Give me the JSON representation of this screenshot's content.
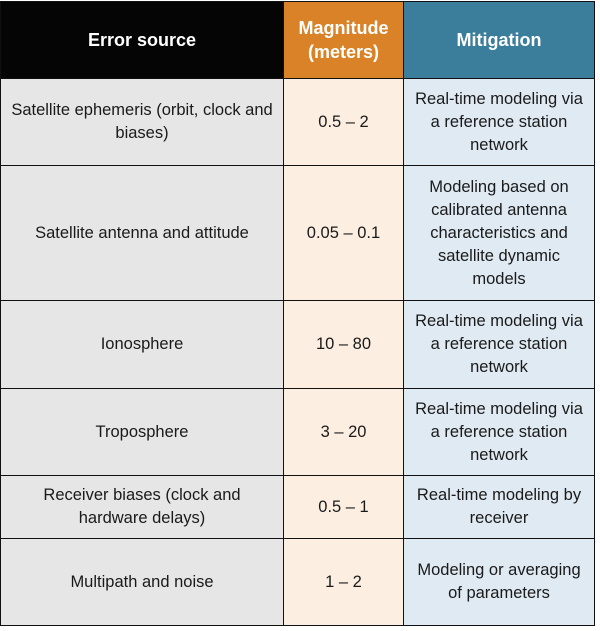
{
  "table": {
    "header": [
      "Error source",
      "Magnitude (meters)",
      "Mitigation"
    ],
    "rows": [
      [
        "Satellite ephemeris (orbit, clock and biases)",
        "0.5 – 2",
        "Real-time modeling via a reference station network"
      ],
      [
        "Satellite antenna and attitude",
        "0.05 – 0.1",
        "Modeling based on calibrated antenna characteristics and satellite dynamic models"
      ],
      [
        "Ionosphere",
        "10 – 80",
        "Real-time modeling via a reference station network"
      ],
      [
        "Troposphere",
        "3 – 20",
        "Real-time modeling via a reference station network"
      ],
      [
        "Receiver biases (clock and hardware delays)",
        "0.5 – 1",
        "Real-time modeling by receiver"
      ],
      [
        "Multipath and noise",
        "1 – 2",
        "Modeling or averaging of parameters"
      ]
    ]
  }
}
